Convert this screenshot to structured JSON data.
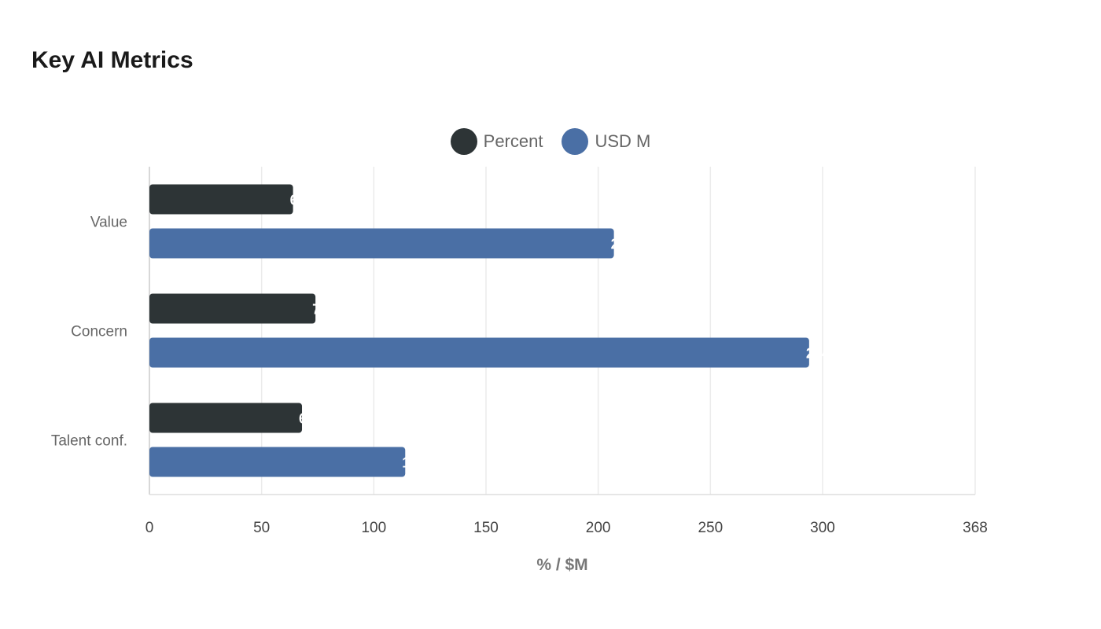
{
  "title": "Key AI Metrics",
  "chart_data": {
    "type": "bar",
    "orientation": "horizontal",
    "title": "Key AI Metrics",
    "categories": [
      "Value",
      "Concern",
      "Talent conf."
    ],
    "series": [
      {
        "name": "Percent",
        "color": "#2d3436",
        "values": [
          64,
          74,
          68
        ]
      },
      {
        "name": "USD M",
        "color": "#4a6fa5",
        "values": [
          207,
          294,
          114
        ]
      }
    ],
    "xlabel": "% / $M",
    "ylabel": "",
    "xlim": [
      0,
      368
    ],
    "xticks": [
      0,
      50,
      100,
      150,
      200,
      250,
      300,
      368
    ],
    "grid": true,
    "legend_position": "top"
  }
}
